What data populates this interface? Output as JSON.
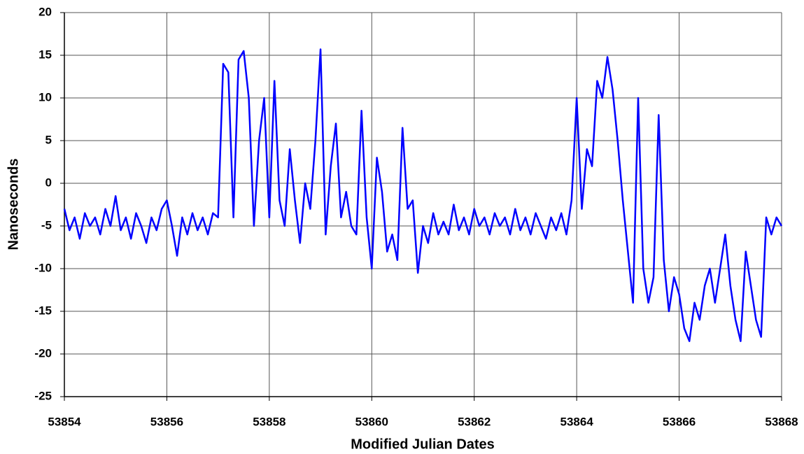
{
  "chart_data": {
    "type": "line",
    "xlabel": "Modified Julian Dates",
    "ylabel": "Nanoseconds",
    "xlim": [
      53854,
      53868
    ],
    "xticks": [
      53854,
      53856,
      53858,
      53860,
      53862,
      53864,
      53866,
      53868
    ],
    "ylim": [
      -25,
      20
    ],
    "yticks": [
      -25,
      -20,
      -15,
      -10,
      -5,
      0,
      5,
      10,
      15,
      20
    ],
    "grid": true,
    "x": [
      53854.0,
      53854.1,
      53854.2,
      53854.3,
      53854.4,
      53854.5,
      53854.6,
      53854.7,
      53854.8,
      53854.9,
      53855.0,
      53855.1,
      53855.2,
      53855.3,
      53855.4,
      53855.5,
      53855.6,
      53855.7,
      53855.8,
      53855.9,
      53856.0,
      53856.1,
      53856.2,
      53856.3,
      53856.4,
      53856.5,
      53856.6,
      53856.7,
      53856.8,
      53856.9,
      53857.0,
      53857.1,
      53857.2,
      53857.3,
      53857.4,
      53857.5,
      53857.6,
      53857.7,
      53857.8,
      53857.9,
      53858.0,
      53858.1,
      53858.2,
      53858.3,
      53858.4,
      53858.5,
      53858.6,
      53858.7,
      53858.8,
      53858.9,
      53859.0,
      53859.1,
      53859.2,
      53859.3,
      53859.4,
      53859.5,
      53859.6,
      53859.7,
      53859.8,
      53859.9,
      53860.0,
      53860.1,
      53860.2,
      53860.3,
      53860.4,
      53860.5,
      53860.6,
      53860.7,
      53860.8,
      53860.9,
      53861.0,
      53861.1,
      53861.2,
      53861.3,
      53861.4,
      53861.5,
      53861.6,
      53861.7,
      53861.8,
      53861.9,
      53862.0,
      53862.1,
      53862.2,
      53862.3,
      53862.4,
      53862.5,
      53862.6,
      53862.7,
      53862.8,
      53862.9,
      53863.0,
      53863.1,
      53863.2,
      53863.3,
      53863.4,
      53863.5,
      53863.6,
      53863.7,
      53863.8,
      53863.9,
      53864.0,
      53864.1,
      53864.2,
      53864.3,
      53864.4,
      53864.5,
      53864.6,
      53864.7,
      53864.8,
      53864.9,
      53865.0,
      53865.1,
      53865.2,
      53865.3,
      53865.4,
      53865.5,
      53865.6,
      53865.7,
      53865.8,
      53865.9,
      53866.0,
      53866.1,
      53866.2,
      53866.3,
      53866.4,
      53866.5,
      53866.6,
      53866.7,
      53866.8,
      53866.9,
      53867.0,
      53867.1,
      53867.2,
      53867.3,
      53867.4,
      53867.5,
      53867.6,
      53867.7,
      53867.8,
      53867.9,
      53868.0
    ],
    "series": [
      {
        "color": "#0000ff",
        "values": [
          -3,
          -5.5,
          -4,
          -6.5,
          -3.5,
          -5,
          -4,
          -6,
          -3,
          -5,
          -1.5,
          -5.5,
          -4,
          -6.5,
          -3.5,
          -5,
          -7,
          -4,
          -5.5,
          -3,
          -2,
          -5,
          -8.5,
          -4,
          -6,
          -3.5,
          -5.5,
          -4,
          -6,
          -3.5,
          -4,
          14,
          13,
          -4,
          14.5,
          15.5,
          10,
          -5,
          5,
          10,
          -4,
          12,
          -2,
          -5,
          4,
          -2,
          -7,
          0,
          -3,
          5,
          15.7,
          -6,
          2,
          7,
          -4,
          -1,
          -5,
          -6,
          8.5,
          -4,
          -10,
          3,
          -1,
          -8,
          -6,
          -9,
          6.5,
          -3,
          -2,
          -10.5,
          -5,
          -7,
          -3.5,
          -6,
          -4.5,
          -6,
          -2.5,
          -5.5,
          -4,
          -6,
          -3,
          -5,
          -4,
          -6,
          -3.5,
          -5,
          -4,
          -6,
          -3,
          -5.5,
          -4,
          -6,
          -3.5,
          -5,
          -6.5,
          -4,
          -5.5,
          -3.5,
          -6,
          -2,
          10,
          -3,
          4,
          2,
          12,
          10,
          14.8,
          11,
          5,
          -2,
          -8,
          -14,
          10,
          -10,
          -14,
          -11,
          8,
          -9,
          -15,
          -11,
          -13,
          -17,
          -18.5,
          -14,
          -16,
          -12,
          -10,
          -14,
          -10,
          -6,
          -12,
          -16,
          -18.5,
          -8,
          -12,
          -16,
          -18,
          -4,
          -6,
          -4,
          -5
        ]
      }
    ]
  }
}
